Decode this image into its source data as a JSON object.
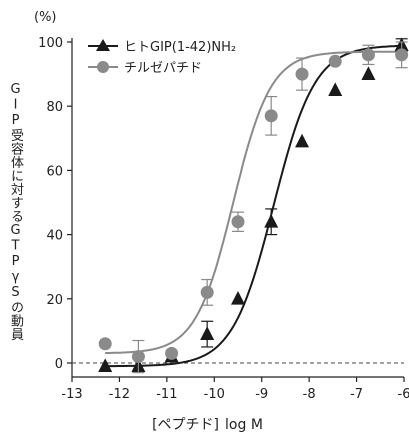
{
  "chart_data": {
    "type": "scatter",
    "unit_label": "(%)",
    "ylabel": "GIP受容体に対するGTPγSの動員",
    "xlabel": "[ペプチド]",
    "xlabel_unit": "log M",
    "xlim": [
      -13,
      -6
    ],
    "ylim": [
      0,
      100
    ],
    "xticks": [
      "-13",
      "-12",
      "-11",
      "-10",
      "-9",
      "-8",
      "-7",
      "-6"
    ],
    "yticks": [
      "0",
      "20",
      "40",
      "60",
      "80",
      "100"
    ],
    "baseline": 0,
    "legend_position": "top-left",
    "series": [
      {
        "name": "ヒトGIP(1-42)NH₂",
        "marker": "triangle",
        "color": "#1a1a1a",
        "ec50_log": -8.75,
        "hill": 1.0,
        "top": 99,
        "bottom": -1,
        "points": [
          {
            "x": -12.3,
            "y": -1
          },
          {
            "x": -11.6,
            "y": -1
          },
          {
            "x": -10.9,
            "y": 2
          },
          {
            "x": -10.15,
            "y": 9,
            "err": 4
          },
          {
            "x": -9.5,
            "y": 20
          },
          {
            "x": -8.8,
            "y": 44,
            "err": 4
          },
          {
            "x": -8.15,
            "y": 69
          },
          {
            "x": -7.45,
            "y": 85
          },
          {
            "x": -6.75,
            "y": 90
          },
          {
            "x": -6.05,
            "y": 99,
            "err": 2
          }
        ]
      },
      {
        "name": "チルゼパチド",
        "marker": "circle",
        "color": "#8a8a8a",
        "ec50_log": -9.6,
        "hill": 1.1,
        "top": 97,
        "bottom": 3,
        "points": [
          {
            "x": -12.3,
            "y": 6
          },
          {
            "x": -11.6,
            "y": 2,
            "err": 5
          },
          {
            "x": -10.9,
            "y": 3
          },
          {
            "x": -10.15,
            "y": 22,
            "err": 4
          },
          {
            "x": -9.5,
            "y": 44,
            "err": 3
          },
          {
            "x": -8.8,
            "y": 77,
            "err": 6
          },
          {
            "x": -8.15,
            "y": 90,
            "err": 5
          },
          {
            "x": -7.45,
            "y": 94
          },
          {
            "x": -6.75,
            "y": 96,
            "err": 3
          },
          {
            "x": -6.05,
            "y": 96,
            "err": 4
          }
        ]
      }
    ]
  }
}
